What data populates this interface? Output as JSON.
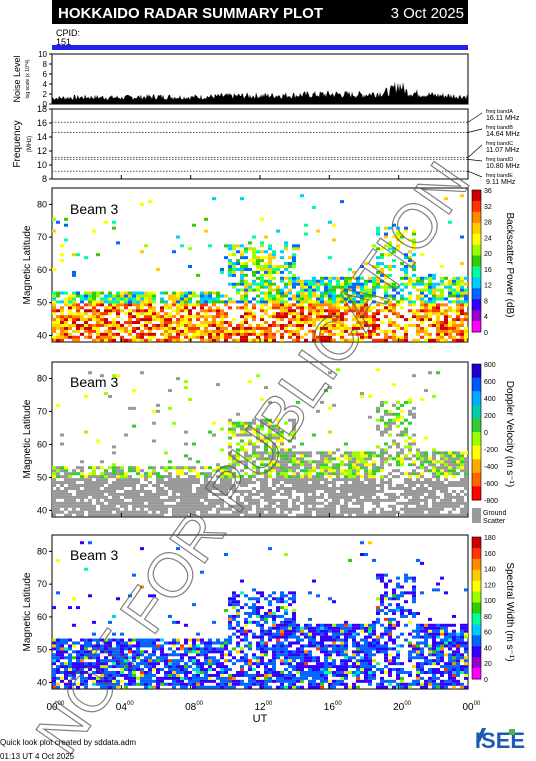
{
  "header": {
    "title": "HOKKAIDO RADAR SUMMARY PLOT",
    "date": "3 Oct 2025",
    "cpid_label": "CPID:",
    "cpid_value": "151"
  },
  "noise_panel": {
    "ylabel": "Noise Level",
    "ylabel_sub": "log scale (x 10^4)",
    "ticks": [
      "10",
      "8",
      "6",
      "4",
      "2",
      "0"
    ]
  },
  "freq_panel": {
    "ylabel": "Frequency",
    "unit": "(MHz)",
    "ticks": [
      "18",
      "16",
      "14",
      "12",
      "10",
      "8"
    ],
    "bands": [
      {
        "name": "freq bandA",
        "value": "16.11 MHz"
      },
      {
        "name": "freq bandB",
        "value": "14.64 MHz"
      },
      {
        "name": "freq bandC",
        "value": "11.07 MHz"
      },
      {
        "name": "freq bandD",
        "value": "10.80 MHz"
      },
      {
        "name": "freq bandE",
        "value": "9.11 MHz"
      }
    ]
  },
  "panels": [
    {
      "beam_label": "Beam  3",
      "ylabel": "Magnetic Latitude",
      "yticks": [
        "80",
        "70",
        "60",
        "50",
        "40"
      ],
      "colorbar_label": "Backscatter Power (dB)",
      "colorbar_ticks": [
        "36",
        "32",
        "28",
        "24",
        "20",
        "16",
        "12",
        "8",
        "4",
        "0"
      ]
    },
    {
      "beam_label": "Beam  3",
      "ylabel": "Magnetic Latitude",
      "yticks": [
        "80",
        "70",
        "60",
        "50",
        "40"
      ],
      "colorbar_label": "Doppler Velocity (m s⁻¹)",
      "colorbar_ticks": [
        "800",
        "600",
        "400",
        "200",
        "0",
        "-200",
        "-400",
        "-600",
        "-800"
      ],
      "ground_label": "Ground",
      "ground_label2": "Scatter"
    },
    {
      "beam_label": "Beam  3",
      "ylabel": "Magnetic Latitude",
      "yticks": [
        "80",
        "70",
        "60",
        "50",
        "40"
      ],
      "colorbar_label": "Spectral Width (m s⁻¹)",
      "colorbar_ticks": [
        "180",
        "160",
        "140",
        "120",
        "100",
        "80",
        "60",
        "40",
        "20",
        "0"
      ]
    }
  ],
  "xaxis": {
    "ticks": [
      "00",
      "04",
      "08",
      "12",
      "16",
      "20",
      "00"
    ],
    "tick_sup": "00",
    "label": "UT"
  },
  "watermark": "NOT FOR PUBLICATION",
  "footer": {
    "credit": "Quick look plot created by sddata.adm",
    "timestamp": "01:13 UT  4 Oct 2025",
    "logo": "ISEE"
  },
  "chart_data": [
    {
      "type": "area",
      "ylabel": "Noise Level",
      "ylim": [
        0,
        10
      ],
      "x_range_hours": [
        0,
        24
      ],
      "x": [
        0,
        2,
        4,
        6,
        8,
        10,
        12,
        14,
        16,
        18,
        19.5,
        20,
        20.5,
        22,
        24
      ],
      "values": [
        1.2,
        1.4,
        1.3,
        1.5,
        1.4,
        1.6,
        1.7,
        1.8,
        2.0,
        1.9,
        2.5,
        4.0,
        2.4,
        1.8,
        1.5
      ]
    },
    {
      "type": "scatter",
      "ylabel": "Frequency",
      "ylim": [
        8,
        18
      ],
      "band_values_mhz": [
        16.11,
        14.64,
        11.07,
        10.8,
        9.11
      ]
    },
    {
      "type": "heatmap",
      "title": "Beam  3",
      "ylabel": "Magnetic Latitude",
      "xlabel": "UT",
      "ylim": [
        38,
        85
      ],
      "clim": [
        0,
        36
      ],
      "colorbar_label": "Backscatter Power (dB)",
      "cmap": [
        "#ff00ff",
        "#9900cc",
        "#3300ff",
        "#0066ff",
        "#00ccff",
        "#00ff99",
        "#33cc00",
        "#99ff00",
        "#ffff00",
        "#ffcc00",
        "#ff8800",
        "#ff3300",
        "#cc0000"
      ]
    },
    {
      "type": "heatmap",
      "title": "Beam  3",
      "ylabel": "Magnetic Latitude",
      "xlabel": "UT",
      "ylim": [
        38,
        85
      ],
      "clim": [
        -800,
        800
      ],
      "colorbar_label": "Doppler Velocity (m s⁻¹)",
      "ground_scatter_color": "#999999",
      "cmap": [
        "#ff0000",
        "#ff6600",
        "#ffaa00",
        "#ffff00",
        "#99ff00",
        "#33cc33",
        "#00ccaa",
        "#00aaff",
        "#0055ff",
        "#2200cc"
      ]
    },
    {
      "type": "heatmap",
      "title": "Beam  3",
      "ylabel": "Magnetic Latitude",
      "xlabel": "UT",
      "ylim": [
        38,
        85
      ],
      "clim": [
        0,
        180
      ],
      "colorbar_label": "Spectral Width (m s⁻¹)",
      "cmap": [
        "#ff00ff",
        "#9900cc",
        "#3300ff",
        "#0066ff",
        "#00ccff",
        "#00ff99",
        "#33cc00",
        "#99ff00",
        "#ffff00",
        "#ffcc00",
        "#ff8800",
        "#ff3300",
        "#cc0000"
      ]
    }
  ]
}
